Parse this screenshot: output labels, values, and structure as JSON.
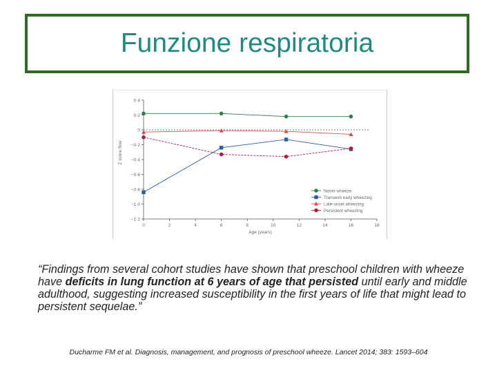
{
  "slide": {
    "title": "Funzione respiratoria",
    "quote": {
      "open": "“Findings from several cohort studies have shown that preschool children with wheeze have ",
      "bold": "deficits in lung function at 6 years of age that persisted",
      "close": " until early and middle adulthood, suggesting increased susceptibility in the first years of life that might lead to persistent sequelae.”"
    },
    "citation": "Ducharme FM et al. Diagnosis, management, and prognosis of preschool wheeze. Lancet 2014; 383: 1593–604"
  },
  "chart_data": {
    "type": "line",
    "xlabel": "Age (years)",
    "ylabel": "Z score flow",
    "xlim": [
      0,
      18
    ],
    "ylim": [
      -1.2,
      0.4
    ],
    "xticks": [
      0,
      2,
      4,
      6,
      8,
      10,
      12,
      14,
      16,
      18
    ],
    "yticks": [
      0.4,
      0.2,
      0,
      -0.2,
      -0.4,
      -0.6,
      -0.8,
      -1.0,
      -1.2
    ],
    "ytick_labels": [
      "0·4",
      "0·2",
      "0",
      "−0·2",
      "−0·4",
      "−0·6",
      "−0·8",
      "−1·0",
      "−1·2"
    ],
    "grid": false,
    "reference_line": 0,
    "legend_position": "bottom-right",
    "series": [
      {
        "name": "Never wheeze",
        "color": "#2e7d4f",
        "marker": "circle",
        "x": [
          0,
          6,
          11,
          16
        ],
        "y": [
          0.22,
          0.22,
          0.18,
          0.18
        ]
      },
      {
        "name": "Transient early wheezing",
        "color": "#2b5c9e",
        "marker": "square",
        "x": [
          0,
          6,
          11,
          16
        ],
        "y": [
          -0.84,
          -0.24,
          -0.13,
          -0.26
        ]
      },
      {
        "name": "Late-onset wheezing",
        "color": "#d94a4a",
        "marker": "triangle",
        "x": [
          0,
          6,
          11,
          16
        ],
        "y": [
          -0.03,
          -0.01,
          -0.02,
          -0.06
        ]
      },
      {
        "name": "Persistent wheezing",
        "color": "#b01c3c",
        "marker": "circle",
        "x": [
          0,
          6,
          11,
          16
        ],
        "y": [
          -0.1,
          -0.33,
          -0.36,
          -0.25
        ]
      }
    ]
  }
}
